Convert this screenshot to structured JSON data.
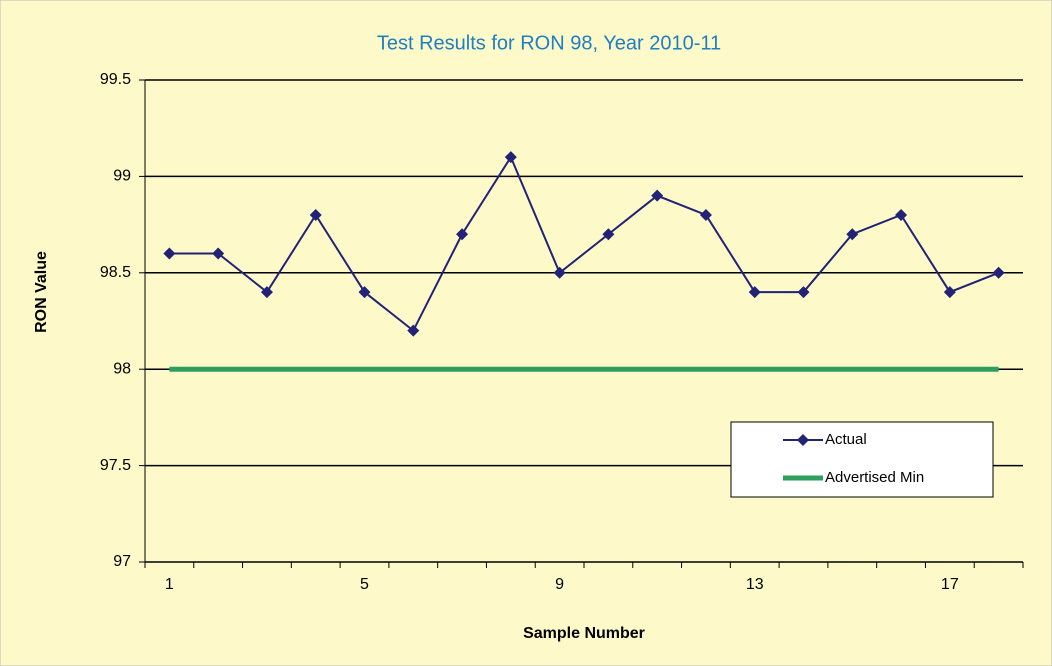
{
  "chart_data": {
    "type": "line",
    "title": "Test Results for RON 98, Year 2010-11",
    "xlabel": "Sample Number",
    "ylabel": "RON Value",
    "categories": [
      1,
      null,
      null,
      null,
      5,
      null,
      null,
      null,
      9,
      null,
      null,
      null,
      13,
      null,
      null,
      null,
      17,
      null
    ],
    "series": [
      {
        "name": "Actual",
        "color": "#222277",
        "marker": "diamond",
        "values": [
          98.6,
          98.6,
          98.4,
          98.8,
          98.4,
          98.2,
          98.7,
          99.1,
          98.5,
          98.7,
          98.9,
          98.8,
          98.4,
          98.4,
          98.7,
          98.8,
          98.4,
          98.5
        ]
      },
      {
        "name": "Advertised Min",
        "color": "#2e9e5e",
        "marker": "none",
        "values": [
          98,
          98,
          98,
          98,
          98,
          98,
          98,
          98,
          98,
          98,
          98,
          98,
          98,
          98,
          98,
          98,
          98,
          98
        ]
      }
    ],
    "ylim": [
      97,
      99.5
    ],
    "yticks": [
      97,
      97.5,
      98,
      98.5,
      99,
      99.5
    ],
    "grid": true,
    "legend": "lower right"
  }
}
